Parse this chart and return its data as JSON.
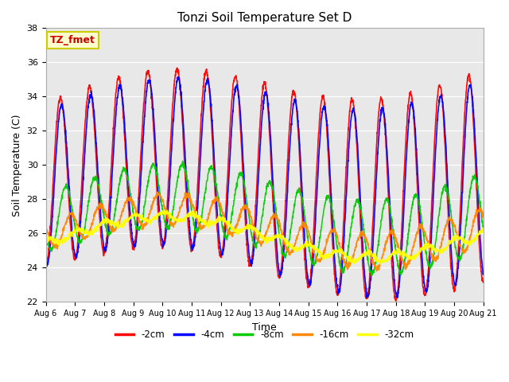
{
  "title": "Tonzi Soil Temperature Set D",
  "xlabel": "Time",
  "ylabel": "Soil Temperature (C)",
  "ylim": [
    22,
    38
  ],
  "xlim": [
    0,
    15
  ],
  "x_tick_labels": [
    "Aug 6",
    "Aug 7",
    "Aug 8",
    "Aug 9",
    "Aug 10",
    "Aug 11",
    "Aug 12",
    "Aug 13",
    "Aug 14",
    "Aug 15",
    "Aug 16",
    "Aug 17",
    "Aug 18",
    "Aug 19",
    "Aug 20",
    "Aug 21"
  ],
  "legend_labels": [
    "-2cm",
    "-4cm",
    "-8cm",
    "-16cm",
    "-32cm"
  ],
  "legend_colors": [
    "#ff0000",
    "#0000ff",
    "#00cc00",
    "#ff8800",
    "#ffff00"
  ],
  "annotation_text": "TZ_fmet",
  "annotation_bg": "#ffffcc",
  "annotation_border": "#cccc00",
  "bg_color": "#e8e8e8",
  "series": {
    "d2cm": {
      "color": "#ff0000",
      "mean": 29.2,
      "amp_start": 4.8,
      "amp_end": 6.2,
      "phase": 0.0,
      "delay": 0.0
    },
    "d4cm": {
      "color": "#0000ff",
      "mean": 29.0,
      "amp_start": 4.5,
      "amp_end": 5.8,
      "phase": 0.0,
      "delay": 0.04
    },
    "d8cm": {
      "color": "#00cc00",
      "mean": 27.0,
      "amp_start": 1.7,
      "amp_end": 2.3,
      "phase": 0.0,
      "delay": 0.18
    },
    "d16cm": {
      "color": "#ff8800",
      "mean": 26.2,
      "amp_start": 0.8,
      "amp_end": 1.1,
      "phase": 0.0,
      "delay": 0.35
    },
    "d32cm": {
      "color": "#ffff00",
      "mean": 25.8,
      "amp_start": 0.22,
      "amp_end": 0.28,
      "phase": 0.0,
      "delay": 0.55
    }
  }
}
